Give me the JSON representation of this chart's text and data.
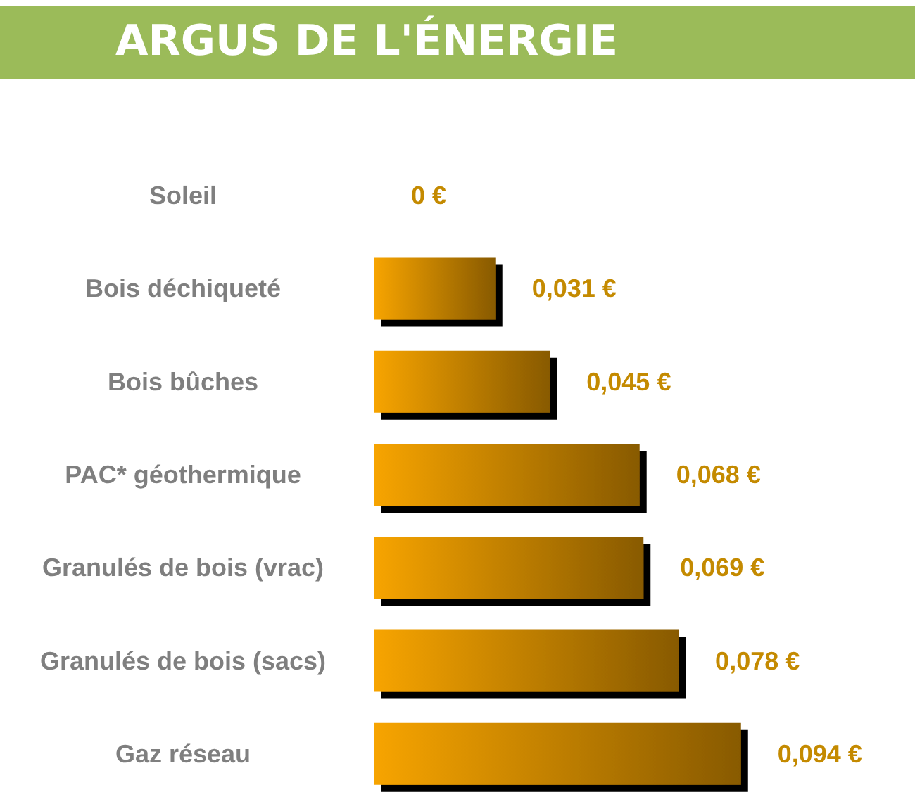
{
  "chart_data": {
    "type": "bar",
    "orientation": "horizontal",
    "title": "ARGUS DE L'ÉNERGIE",
    "categories": [
      "Soleil",
      "Bois déchiqueté",
      "Bois bûches",
      "PAC* géothermique",
      "Granulés de bois (vrac)",
      "Granulés de bois (sacs)",
      "Gaz réseau"
    ],
    "values": [
      0,
      0.031,
      0.045,
      0.068,
      0.069,
      0.078,
      0.094
    ],
    "value_labels": [
      "0 €",
      "0,031 €",
      "0,045 €",
      "0,068 €",
      "0,069 €",
      "0,078 €",
      "0,094 €"
    ],
    "color": "#f7a400"
  }
}
